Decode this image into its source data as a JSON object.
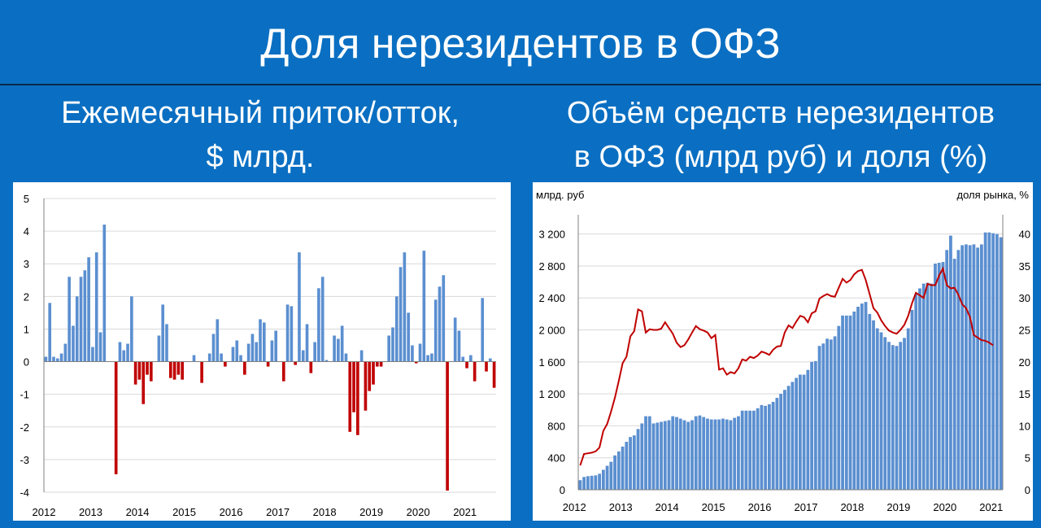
{
  "header": {
    "title": "Доля нерезидентов в ОФЗ",
    "left_subtitle_1": "Ежемесячный приток/отток,",
    "left_subtitle_2": "$ млрд.",
    "right_subtitle_1": "Объём средств нерезидентов",
    "right_subtitle_2": "в ОФЗ (млрд руб) и доля (%)"
  },
  "chart_data": [
    {
      "type": "bar",
      "title": "Ежемесячный приток/отток, $ млрд.",
      "ylim": [
        -4,
        5
      ],
      "yticks": [
        5,
        4,
        3,
        2,
        1,
        0,
        -1,
        -2,
        -3,
        -4
      ],
      "xticks": [
        "2012",
        "2013",
        "2014",
        "2015",
        "2016",
        "2017",
        "2018",
        "2019",
        "2020",
        "2021"
      ],
      "start_month": "2012-01",
      "colors": {
        "positive": "#5b8fd0",
        "negative": "#c00000"
      },
      "grid": true,
      "values": [
        0.15,
        1.8,
        0.15,
        0.1,
        0.25,
        0.55,
        2.6,
        1.1,
        2.0,
        2.6,
        2.8,
        3.2,
        0.45,
        3.35,
        0.9,
        4.2,
        0,
        0,
        -3.45,
        0.6,
        0.35,
        0.55,
        2.0,
        -0.7,
        -0.55,
        -1.3,
        -0.4,
        -0.6,
        0,
        0.8,
        1.75,
        1.15,
        -0.5,
        -0.55,
        -0.4,
        -0.55,
        0,
        0,
        0.2,
        0,
        -0.65,
        0,
        0.25,
        0.85,
        1.3,
        0.25,
        -0.15,
        0,
        0.45,
        0.65,
        0.2,
        -0.4,
        0.55,
        0.85,
        0.6,
        1.3,
        1.2,
        -0.15,
        0.65,
        0.95,
        0,
        -0.6,
        1.75,
        1.7,
        -0.1,
        3.35,
        0.35,
        1.15,
        -0.35,
        0.6,
        2.25,
        2.6,
        0.05,
        0,
        0.8,
        0.7,
        1.1,
        0.25,
        -2.15,
        -1.55,
        -2.25,
        0.35,
        -1.5,
        -0.9,
        -0.7,
        -0.15,
        -0.15,
        0,
        0.8,
        1.05,
        2.0,
        2.9,
        3.35,
        1.5,
        0.5,
        -0.05,
        0.55,
        3.4,
        0.2,
        0.25,
        1.9,
        2.3,
        2.65,
        -3.95,
        0,
        1.35,
        0.95,
        0.15,
        -0.2,
        0.2,
        -0.6,
        0,
        1.95,
        -0.3,
        0.1,
        -0.8
      ]
    },
    {
      "type": "bar+line",
      "title": "Объём средств нерезидентов в ОФЗ (млрд руб) и доля (%)",
      "ylabel_left": "млрд. руб",
      "ylabel_right": "доля рынка, %",
      "ylim_left": [
        0,
        3400
      ],
      "ylim_right": [
        0,
        42.5
      ],
      "yticks_left": [
        "3 200",
        "2 800",
        "2 400",
        "2 000",
        "1 600",
        "1 200",
        "800",
        "400",
        "0"
      ],
      "yticks_left_values": [
        3200,
        2800,
        2400,
        2000,
        1600,
        1200,
        800,
        400,
        0
      ],
      "yticks_right": [
        40,
        35,
        30,
        25,
        20,
        15,
        10,
        5,
        0
      ],
      "xticks": [
        "2012",
        "2013",
        "2014",
        "2015",
        "2016",
        "2017",
        "2018",
        "2019",
        "2020",
        "2021"
      ],
      "start_month": "2012-02",
      "colors": {
        "bars": "#5b8fd0",
        "line": "#c00000"
      },
      "grid": true,
      "series": [
        {
          "type": "bar",
          "values": [
            120,
            160,
            170,
            175,
            180,
            200,
            250,
            300,
            350,
            430,
            480,
            540,
            600,
            660,
            680,
            760,
            830,
            920,
            920,
            830,
            840,
            850,
            860,
            870,
            920,
            910,
            890,
            870,
            850,
            870,
            920,
            930,
            910,
            890,
            880,
            880,
            880,
            890,
            880,
            870,
            900,
            920,
            990,
            990,
            990,
            990,
            1020,
            1060,
            1050,
            1070,
            1100,
            1150,
            1200,
            1250,
            1300,
            1350,
            1400,
            1440,
            1440,
            1500,
            1600,
            1610,
            1800,
            1830,
            1890,
            1880,
            1920,
            2050,
            2180,
            2180,
            2180,
            2230,
            2290,
            2330,
            2350,
            2200,
            2120,
            2020,
            1970,
            1910,
            1850,
            1810,
            1800,
            1850,
            1900,
            2020,
            2250,
            2450,
            2520,
            2580,
            2590,
            2580,
            2830,
            2840,
            2850,
            3000,
            3180,
            2890,
            3000,
            3060,
            3070,
            3060,
            3070,
            3030,
            3070,
            3220,
            3220,
            3210,
            3200,
            3160
          ]
        },
        {
          "type": "line",
          "values": [
            3.8,
            5.6,
            5.7,
            5.8,
            6.0,
            6.6,
            9.2,
            10.3,
            12.2,
            14.4,
            17.0,
            19.8,
            20.8,
            24.0,
            24.8,
            28.2,
            27.9,
            24.6,
            25.1,
            25.0,
            25.0,
            25.2,
            26.2,
            25.3,
            24.4,
            23.0,
            22.3,
            22.6,
            23.5,
            24.6,
            25.6,
            25.1,
            24.9,
            24.6,
            23.7,
            24.2,
            18.8,
            19.0,
            18.0,
            18.4,
            18.2,
            19.0,
            20.4,
            20.2,
            20.8,
            20.6,
            21.0,
            21.6,
            21.4,
            21.1,
            21.9,
            22.4,
            22.5,
            24.6,
            25.7,
            25.3,
            26.3,
            27.2,
            27.0,
            26.2,
            27.6,
            27.9,
            29.9,
            30.3,
            30.6,
            30.3,
            30.2,
            31.6,
            33.0,
            32.4,
            32.8,
            33.7,
            34.2,
            34.4,
            32.8,
            30.6,
            28.4,
            27.7,
            26.5,
            25.6,
            24.9,
            24.6,
            24.4,
            25.0,
            25.8,
            27.2,
            29.2,
            30.8,
            30.4,
            30.0,
            32.2,
            32.0,
            32.0,
            33.5,
            34.6,
            32.0,
            31.5,
            31.6,
            30.5,
            29.0,
            28.4,
            27.0,
            24.2,
            23.8,
            23.4,
            23.3,
            23.0,
            22.6
          ]
        }
      ]
    }
  ]
}
